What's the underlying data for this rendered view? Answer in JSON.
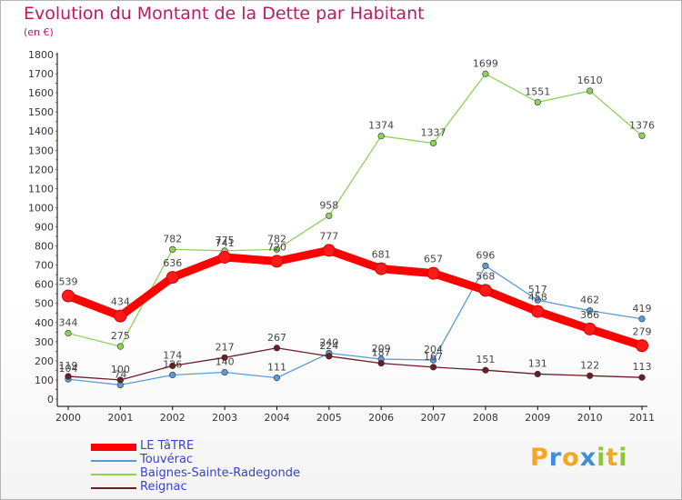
{
  "header": {
    "title": "Evolution du Montant de la Dette par Habitant",
    "unit": "(en €)"
  },
  "logo": {
    "text": "Proxiti",
    "letters": [
      {
        "ch": "P",
        "color": "#f5a623"
      },
      {
        "ch": "r",
        "color": "#3f8fd8"
      },
      {
        "ch": "o",
        "color": "#f5a623"
      },
      {
        "ch": "x",
        "color": "#3f8fd8"
      },
      {
        "ch": "i",
        "color": "#8cc63f"
      },
      {
        "ch": "t",
        "color": "#f5a623"
      },
      {
        "ch": "i",
        "color": "#8cc63f"
      }
    ]
  },
  "chart_data": {
    "type": "line",
    "title": "Evolution du Montant de la Dette par Habitant",
    "ylabel": "(en €)",
    "xlabel": "",
    "x": [
      "2000",
      "2001",
      "2002",
      "2003",
      "2004",
      "2005",
      "2006",
      "2007",
      "2008",
      "2009",
      "2010",
      "2011"
    ],
    "ylim": [
      0,
      1800
    ],
    "yticks": [
      0,
      100,
      200,
      300,
      400,
      500,
      600,
      700,
      800,
      900,
      1000,
      1100,
      1200,
      1300,
      1400,
      1500,
      1600,
      1700,
      1800
    ],
    "grid": false,
    "legend_position": "bottom-left",
    "series": [
      {
        "name": "Baignes-Sainte-Radegonde",
        "color": "#8ed15a",
        "values": [
          344,
          275,
          782,
          775,
          782,
          958,
          1374,
          1337,
          1699,
          1551,
          1610,
          1376
        ]
      },
      {
        "name": "Touvérac",
        "color": "#5b9bd5",
        "values": [
          104,
          74,
          126,
          140,
          111,
          240,
          209,
          204,
          696,
          517,
          462,
          419
        ]
      },
      {
        "name": "Reignac",
        "color": "#6b1d24",
        "values": [
          119,
          100,
          174,
          217,
          267,
          224,
          187,
          167,
          151,
          131,
          122,
          113
        ]
      },
      {
        "name": "LE TâTRE",
        "color": "#ff0000",
        "values": [
          539,
          434,
          636,
          741,
          720,
          777,
          681,
          657,
          568,
          458,
          366,
          279
        ]
      }
    ],
    "legend_order": [
      "LE TâTRE",
      "Touvérac",
      "Baignes-Sainte-Radegonde",
      "Reignac"
    ]
  }
}
